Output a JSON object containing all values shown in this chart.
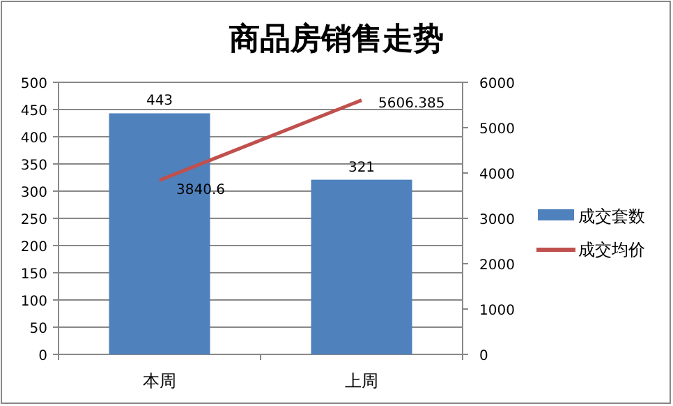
{
  "chart_data": {
    "type": "bar",
    "title": "商品房销售走势",
    "categories": [
      "本周",
      "上周"
    ],
    "series": [
      {
        "name": "成交套数",
        "color": "#4f81bd",
        "values": [
          443,
          321
        ]
      },
      {
        "name": "成交均价",
        "type": "line",
        "axis": "y2",
        "color": "#c0504d",
        "values": [
          3840.6,
          5606.385
        ]
      }
    ],
    "ylim": [
      0,
      500
    ],
    "yticks": [
      0,
      50,
      100,
      150,
      200,
      250,
      300,
      350,
      400,
      450,
      500
    ],
    "y2lim": [
      0,
      6000
    ],
    "y2ticks": [
      0,
      1000,
      2000,
      3000,
      4000,
      5000,
      6000
    ],
    "grid": "y",
    "legend": "right",
    "data_labels": true
  }
}
